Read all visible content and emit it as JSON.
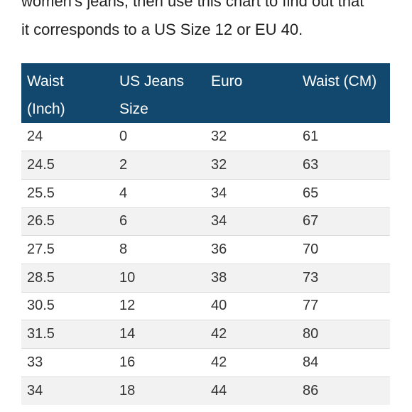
{
  "intro": {
    "line1": "women's jeans, then use this chart to find out that",
    "line2": "it corresponds to a US Size 12 or EU 40."
  },
  "table": {
    "headers": [
      {
        "line1": "Waist",
        "line2": "(Inch)"
      },
      {
        "line1": "US Jeans",
        "line2": "Size"
      },
      {
        "line1": "Euro",
        "line2": ""
      },
      {
        "line1": "Waist (CM)",
        "line2": ""
      }
    ],
    "rows": [
      [
        "24",
        "0",
        "32",
        "61"
      ],
      [
        "24.5",
        "2",
        "32",
        "63"
      ],
      [
        "25.5",
        "4",
        "34",
        "65"
      ],
      [
        "26.5",
        "6",
        "34",
        "67"
      ],
      [
        "27.5",
        "8",
        "36",
        "70"
      ],
      [
        "28.5",
        "10",
        "38",
        "73"
      ],
      [
        "30.5",
        "12",
        "40",
        "77"
      ],
      [
        "31.5",
        "14",
        "42",
        "80"
      ],
      [
        "33",
        "16",
        "42",
        "84"
      ],
      [
        "34",
        "18",
        "44",
        "86"
      ]
    ]
  },
  "colors": {
    "header_bg": "#12486e",
    "header_text": "#ffffff",
    "row_alt_bg": "#f2f2f2",
    "divider": "#dcdcdc"
  }
}
